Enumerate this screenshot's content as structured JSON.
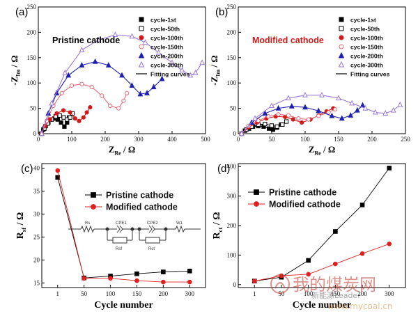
{
  "watermark": {
    "title": "我的煤炭网",
    "sub": "新能源Leader",
    "url": "www.mycoal.cn"
  },
  "chart_data": [
    {
      "panel": "(a)",
      "type": "scatter",
      "annotation": "Pristine cathode",
      "annotation_color": "#000000",
      "xlabel": "Z_Re / Ω",
      "ylabel": "-Z_Im / Ω",
      "xlim": [
        0,
        500
      ],
      "ylim": [
        0,
        250
      ],
      "xticks": [
        0,
        100,
        200,
        300,
        400,
        500
      ],
      "yticks": [
        0,
        50,
        100,
        150,
        200,
        250
      ],
      "legend_position": "top-right",
      "series": [
        {
          "name": "cycle-1st",
          "marker": "square-filled",
          "color": "#000000",
          "x": [
            8,
            15,
            22,
            30,
            38,
            48,
            58,
            68,
            78,
            86,
            92
          ],
          "y": [
            0,
            8,
            15,
            22,
            28,
            30,
            28,
            22,
            14,
            22,
            32
          ]
        },
        {
          "name": "cycle-50th",
          "marker": "square-open",
          "color": "#000000",
          "x": [
            10,
            18,
            28,
            40,
            52,
            64,
            76,
            86,
            95,
            102
          ],
          "y": [
            0,
            10,
            20,
            28,
            34,
            36,
            32,
            28,
            32,
            40
          ]
        },
        {
          "name": "cycle-100th",
          "marker": "circle-filled",
          "color": "#d01a1a",
          "x": [
            10,
            20,
            35,
            55,
            75,
            95,
            110,
            122,
            135,
            145,
            155
          ],
          "y": [
            0,
            15,
            28,
            40,
            46,
            42,
            30,
            25,
            32,
            42,
            52
          ]
        },
        {
          "name": "cycle-150th",
          "marker": "circle-open",
          "color": "#e86a78",
          "x": [
            10,
            25,
            45,
            70,
            100,
            130,
            160,
            190,
            215,
            240,
            255,
            265
          ],
          "y": [
            0,
            25,
            55,
            80,
            95,
            98,
            92,
            75,
            55,
            50,
            65,
            80
          ]
        },
        {
          "name": "cycle-200th",
          "marker": "triangle-filled",
          "color": "#2020b0",
          "x": [
            10,
            30,
            55,
            90,
            130,
            170,
            210,
            250,
            280,
            305,
            325,
            345,
            370
          ],
          "y": [
            0,
            40,
            80,
            115,
            135,
            142,
            135,
            115,
            95,
            78,
            80,
            92,
            108
          ]
        },
        {
          "name": "cycle-300th",
          "marker": "triangle-open",
          "color": "#9a7ad8",
          "x": [
            10,
            40,
            80,
            130,
            180,
            230,
            280,
            320,
            360,
            400,
            430,
            455,
            470,
            490
          ],
          "y": [
            0,
            60,
            120,
            165,
            185,
            195,
            192,
            180,
            160,
            140,
            125,
            115,
            120,
            140
          ]
        },
        {
          "name": "Fitting curves",
          "marker": "line",
          "color": "#000000",
          "x": [],
          "y": []
        }
      ]
    },
    {
      "panel": "(b)",
      "type": "scatter",
      "annotation": "Modified cathode",
      "annotation_color": "#d01a1a",
      "xlabel": "Z_Re / Ω",
      "ylabel": "-Z_Im / Ω",
      "xlim": [
        0,
        250
      ],
      "ylim": [
        0,
        250
      ],
      "xticks": [
        0,
        50,
        100,
        150,
        200,
        250
      ],
      "yticks": [
        0,
        50,
        100,
        150,
        200,
        250
      ],
      "legend_position": "top-right",
      "series": [
        {
          "name": "cycle-1st",
          "marker": "square-filled",
          "color": "#000000",
          "x": [
            5,
            10,
            16,
            22,
            30,
            38,
            46,
            52,
            58,
            64
          ],
          "y": [
            0,
            6,
            10,
            14,
            15,
            14,
            10,
            8,
            12,
            18
          ]
        },
        {
          "name": "cycle-50th",
          "marker": "square-open",
          "color": "#000000",
          "x": [
            5,
            12,
            20,
            30,
            40,
            50,
            58,
            66,
            72
          ],
          "y": [
            0,
            8,
            14,
            18,
            19,
            16,
            14,
            18,
            24
          ]
        },
        {
          "name": "cycle-100th",
          "marker": "circle-filled",
          "color": "#d01a1a",
          "x": [
            5,
            15,
            28,
            42,
            56,
            70,
            82,
            95,
            108,
            120,
            132,
            142
          ],
          "y": [
            0,
            12,
            22,
            30,
            34,
            33,
            28,
            22,
            28,
            36,
            44,
            50
          ]
        },
        {
          "name": "cycle-150th",
          "marker": "circle-open",
          "color": "#e86a78",
          "x": [
            5,
            15,
            30,
            45,
            60,
            75,
            90,
            105,
            120,
            135,
            145
          ],
          "y": [
            0,
            15,
            26,
            34,
            38,
            36,
            30,
            28,
            35,
            42,
            48
          ]
        },
        {
          "name": "cycle-200th",
          "marker": "triangle-filled",
          "color": "#2020b0",
          "x": [
            5,
            20,
            40,
            60,
            80,
            100,
            120,
            140,
            155,
            168,
            178,
            186
          ],
          "y": [
            0,
            22,
            40,
            50,
            54,
            52,
            45,
            35,
            30,
            36,
            46,
            56
          ]
        },
        {
          "name": "cycle-300th",
          "marker": "triangle-open",
          "color": "#9a7ad8",
          "x": [
            5,
            25,
            50,
            75,
            100,
            125,
            150,
            170,
            190,
            205,
            220,
            232,
            242
          ],
          "y": [
            0,
            30,
            55,
            70,
            76,
            76,
            70,
            60,
            50,
            42,
            40,
            46,
            57
          ]
        },
        {
          "name": "Fitting curves",
          "marker": "line",
          "color": "#000000",
          "x": [],
          "y": []
        }
      ]
    },
    {
      "panel": "(c)",
      "type": "line",
      "xlabel": "Cycle number",
      "ylabel": "R_sf / Ω",
      "categories": [
        "1",
        "50",
        "100",
        "150",
        "200",
        "300"
      ],
      "ylim": [
        14,
        41
      ],
      "yticks": [
        15,
        20,
        25,
        30,
        35,
        40
      ],
      "legend_position": "top-right",
      "inset": {
        "labels": [
          "Rs",
          "CPE1",
          "Rsf",
          "CPE2",
          "Rct",
          "W1"
        ]
      },
      "series": [
        {
          "name": "Pristine cathode",
          "marker": "square-filled",
          "color": "#000000",
          "values": [
            38.0,
            16.1,
            16.5,
            17.0,
            17.4,
            17.6
          ]
        },
        {
          "name": "Modified cathode",
          "marker": "circle-filled",
          "color": "#e02020",
          "values": [
            39.5,
            16.0,
            16.0,
            15.5,
            15.2,
            15.2
          ]
        }
      ]
    },
    {
      "panel": "(d)",
      "type": "line",
      "xlabel": "Cycle number",
      "ylabel": "R_ct / Ω",
      "categories": [
        "1",
        "50",
        "100",
        "150",
        "200",
        "300"
      ],
      "ylim": [
        -10,
        410
      ],
      "yticks": [
        0,
        100,
        200,
        300,
        400
      ],
      "legend_position": "top-left",
      "series": [
        {
          "name": "Pristine cathode",
          "marker": "square-filled",
          "color": "#000000",
          "values": [
            12,
            25,
            82,
            180,
            270,
            395
          ]
        },
        {
          "name": "Modified cathode",
          "marker": "circle-filled",
          "color": "#e02020",
          "values": [
            12,
            30,
            35,
            70,
            105,
            138
          ]
        }
      ]
    }
  ]
}
